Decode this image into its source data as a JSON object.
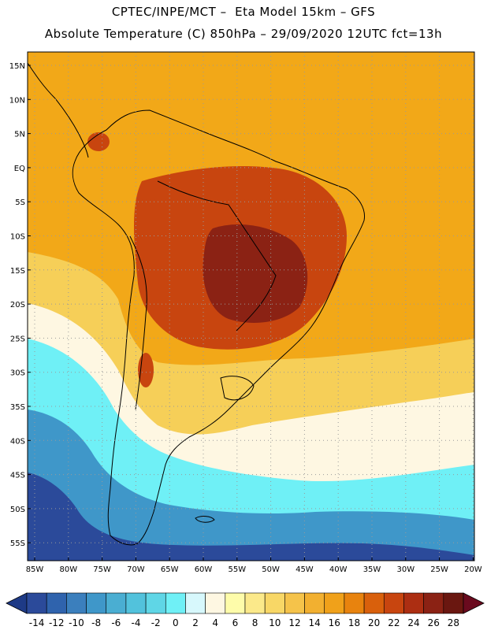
{
  "titles": {
    "line1": "CPTEC/INPE/MCT –  Eta Model 15km – GFS",
    "line2": "Absolute Temperature (C) 850hPa – 29/09/2020 12UTC fct=13h"
  },
  "axes": {
    "lat_labels": [
      "15N",
      "10N",
      "5N",
      "EQ",
      "5S",
      "10S",
      "15S",
      "20S",
      "25S",
      "30S",
      "35S",
      "40S",
      "45S",
      "50S",
      "55S"
    ],
    "lon_labels": [
      "85W",
      "80W",
      "75W",
      "70W",
      "65W",
      "60W",
      "55W",
      "50W",
      "45W",
      "40W",
      "35W",
      "30W",
      "25W",
      "20W"
    ]
  },
  "colorbar": {
    "labels": [
      "-14",
      "-12",
      "-10",
      "-8",
      "-6",
      "-4",
      "-2",
      "0",
      "2",
      "4",
      "6",
      "8",
      "10",
      "12",
      "14",
      "16",
      "18",
      "20",
      "22",
      "24",
      "26",
      "28"
    ],
    "colors": [
      "#2b4a9a",
      "#2f63ad",
      "#3b7fbd",
      "#3f97c9",
      "#4aaed2",
      "#52c2dc",
      "#5fd6e6",
      "#6ff0f6",
      "#d7f8fc",
      "#fef7e2",
      "#fefcaa",
      "#fbe98a",
      "#f8d766",
      "#f5c34a",
      "#f2b030",
      "#f0a11a",
      "#e8830e",
      "#d9600c",
      "#c8450f",
      "#ac2e12",
      "#8b2214",
      "#6a1710"
    ],
    "low_arrow_color": "#1e3a86",
    "high_arrow_color": "#6a0a1e"
  },
  "map_colors": {
    "ocean_warm": "#f2a818",
    "yellow_band": "#f6cf58",
    "pale_band": "#fef7e2",
    "cyan_band": "#6ff0f6",
    "blue_band": "#3f97c9",
    "deep_blue": "#2b4a9a",
    "hot_interior": "#c8450f",
    "hottest": "#8b2214"
  }
}
